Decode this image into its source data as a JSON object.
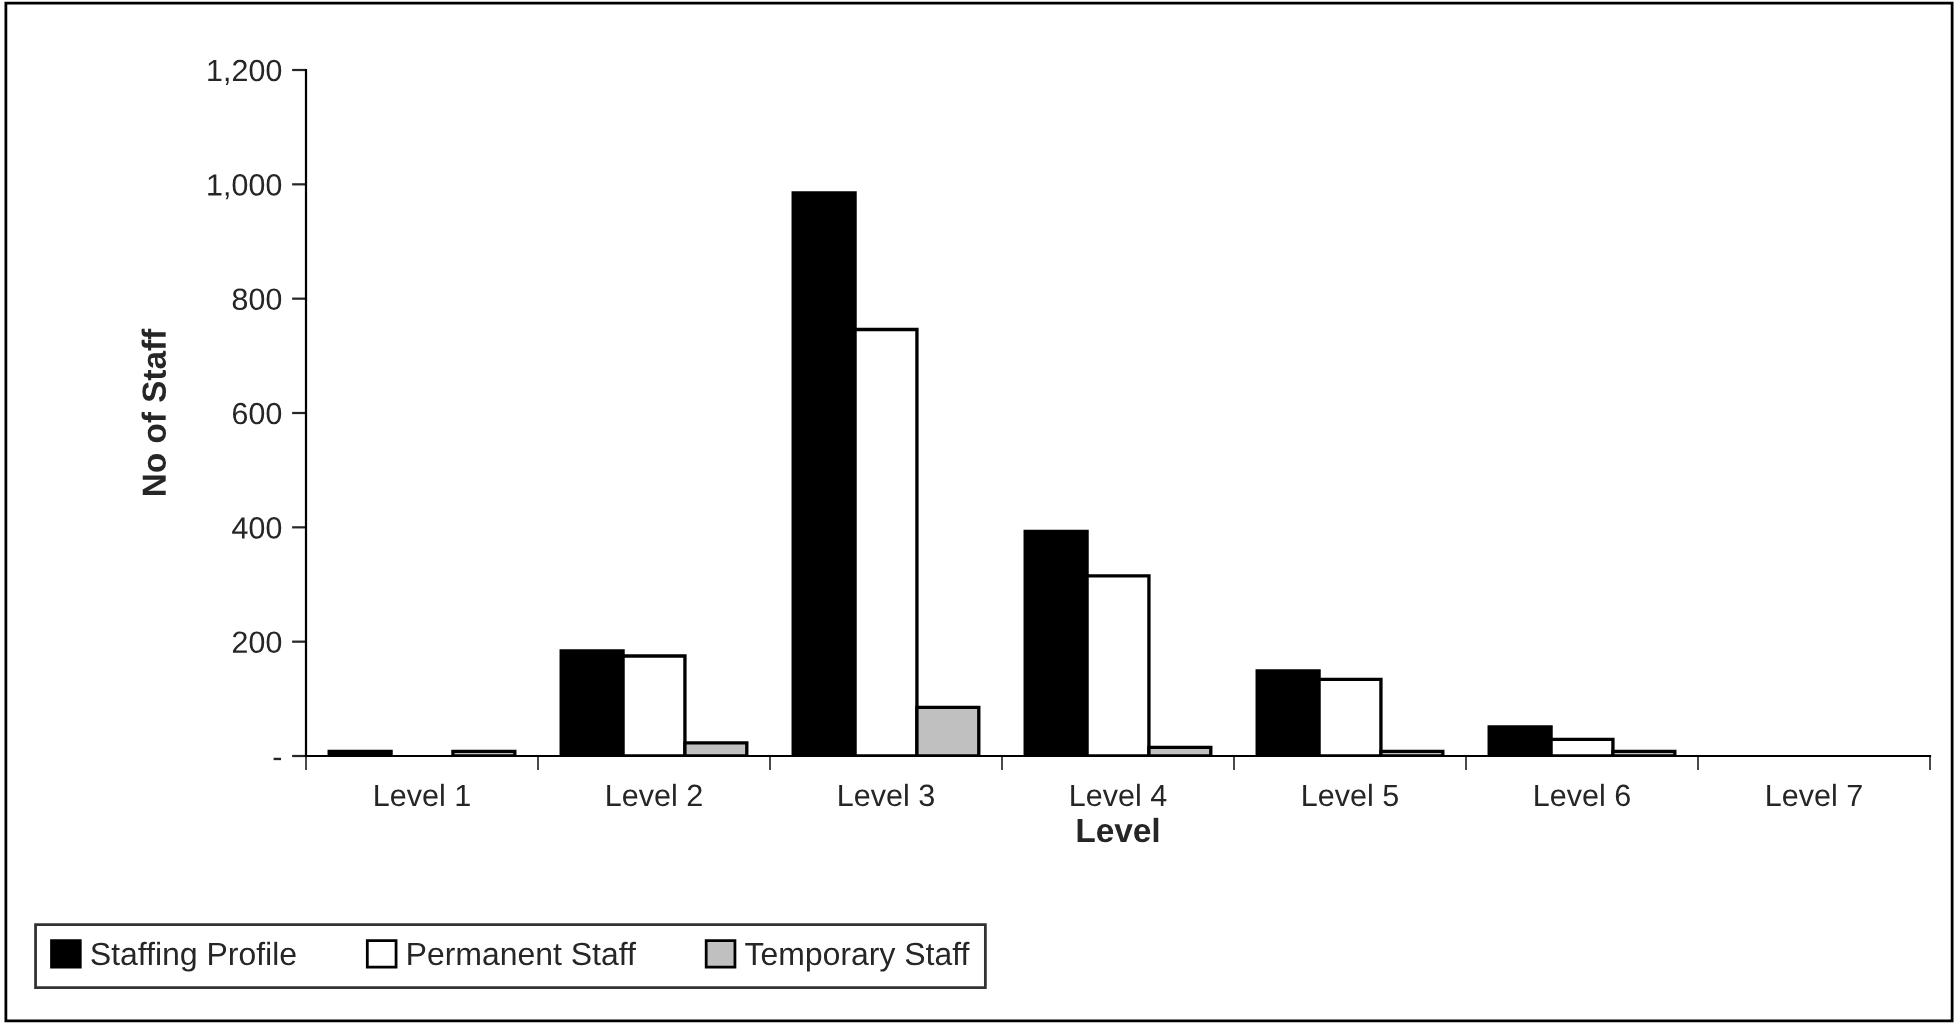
{
  "chart_data": {
    "type": "bar",
    "xlabel": "Level",
    "ylabel": "No of Staff",
    "categories": [
      "Level 1",
      "Level 2",
      "Level 3",
      "Level 4",
      "Level 5",
      "Level 6",
      "Level 7"
    ],
    "series": [
      {
        "name": "Staffing Profile",
        "color": "#000000",
        "values": [
          8,
          184,
          985,
          393,
          149,
          51,
          0
        ]
      },
      {
        "name": "Permanent Staff",
        "color": "#ffffff",
        "values": [
          0,
          175,
          746,
          315,
          134,
          29,
          0
        ]
      },
      {
        "name": "Temporary Staff",
        "color": "#c0c0c0",
        "values": [
          8,
          23,
          85,
          15,
          8,
          8,
          0
        ]
      }
    ],
    "ylim": [
      0,
      1200
    ],
    "yticks": [
      {
        "value": 0,
        "label": "-"
      },
      {
        "value": 200,
        "label": "200"
      },
      {
        "value": 400,
        "label": "400"
      },
      {
        "value": 600,
        "label": "600"
      },
      {
        "value": 800,
        "label": "800"
      },
      {
        "value": 1000,
        "label": "1,000"
      },
      {
        "value": 1200,
        "label": "1,200"
      }
    ],
    "grid": false,
    "legend": "bottom"
  }
}
